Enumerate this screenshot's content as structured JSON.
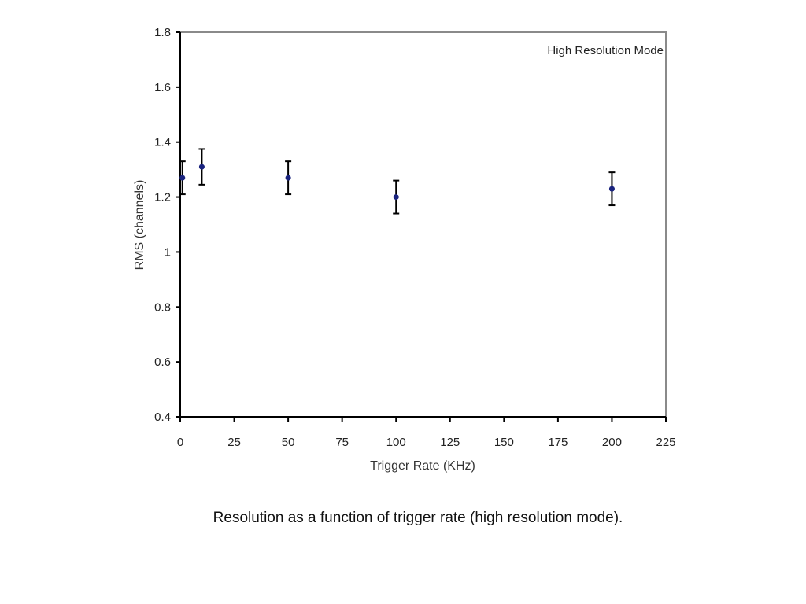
{
  "caption": "Resolution as a function of trigger rate (high resolution mode).",
  "chart_data": {
    "type": "scatter",
    "title": "",
    "annotation": "High Resolution Mode",
    "xlabel": "Trigger Rate (KHz)",
    "ylabel": "RMS (channels)",
    "xlim": [
      0,
      225
    ],
    "ylim": [
      0.4,
      1.8
    ],
    "xticks": [
      0,
      25,
      50,
      75,
      100,
      125,
      150,
      175,
      200,
      225
    ],
    "yticks": [
      0.4,
      0.6,
      0.8,
      1,
      1.2,
      1.4,
      1.6,
      1.8
    ],
    "ytick_labels": [
      "0.4",
      "0.6",
      "0.8",
      "1",
      "1.2",
      "1.4",
      "1.6",
      "1.8"
    ],
    "grid": false,
    "point_color": "#1a237e",
    "series": [
      {
        "x": [
          1,
          10,
          50,
          100,
          200
        ],
        "y": [
          1.27,
          1.31,
          1.27,
          1.2,
          1.23
        ],
        "yerr_low": [
          1.21,
          1.245,
          1.21,
          1.14,
          1.17
        ],
        "yerr_high": [
          1.33,
          1.375,
          1.33,
          1.26,
          1.29
        ]
      }
    ]
  }
}
